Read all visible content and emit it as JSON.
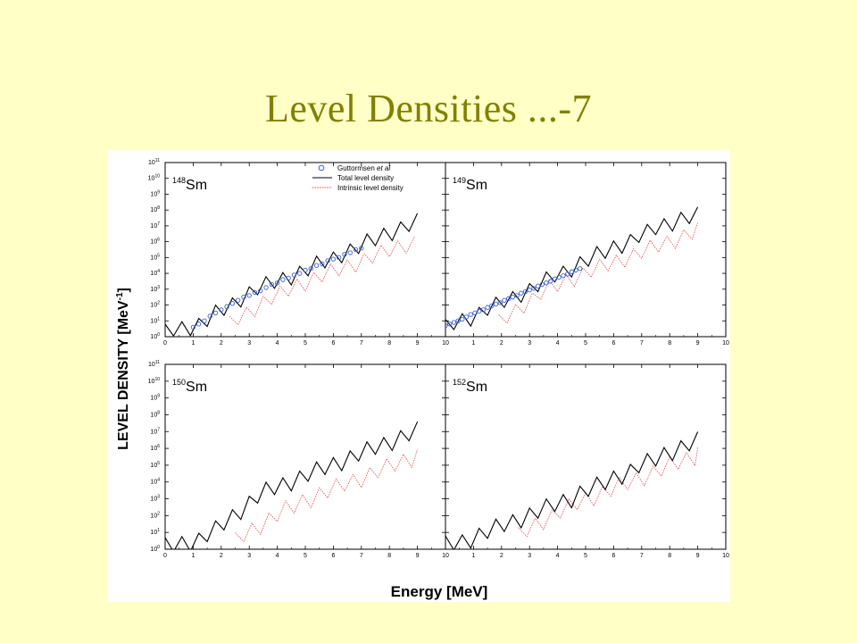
{
  "slide": {
    "title": "Level Densities ...-7"
  },
  "colors": {
    "background": "#ffffc6",
    "title": "#808000",
    "total": "#000000",
    "intrinsic": "#e84848",
    "experimental": "#3a5fd0"
  },
  "chart_data": {
    "type": "line",
    "xlabel": "Energy [MeV]",
    "ylabel": "LEVEL DENSITY [MeV",
    "ylabel_sup": "-1",
    "ylabel_close": "]",
    "xlim": [
      0,
      10
    ],
    "ylim_log10": [
      0,
      11
    ],
    "y_scale": "log",
    "x_ticks": [
      "0",
      "1",
      "2",
      "3",
      "4",
      "5",
      "6",
      "7",
      "8",
      "9",
      "10"
    ],
    "y_ticks": [
      {
        "base": "10",
        "exp": "0"
      },
      {
        "base": "10",
        "exp": "1"
      },
      {
        "base": "10",
        "exp": "2"
      },
      {
        "base": "10",
        "exp": "3"
      },
      {
        "base": "10",
        "exp": "4"
      },
      {
        "base": "10",
        "exp": "5"
      },
      {
        "base": "10",
        "exp": "6"
      },
      {
        "base": "10",
        "exp": "7"
      },
      {
        "base": "10",
        "exp": "8"
      },
      {
        "base": "10",
        "exp": "9"
      },
      {
        "base": "10",
        "exp": "10"
      },
      {
        "base": "10",
        "exp": "11"
      }
    ],
    "legend": {
      "placement": "top-right of first panel",
      "entries": [
        {
          "label": "Guttormsen ",
          "label_italic": "et al",
          "style": "circle",
          "color": "#3a5fd0"
        },
        {
          "label": "Total level density",
          "style": "line",
          "color": "#000000"
        },
        {
          "label": "Intrinsic level density",
          "style": "dotted",
          "color": "#e84848"
        }
      ]
    },
    "panels": [
      {
        "mass": "148",
        "element": "Sm",
        "total": {
          "x": [
            0,
            0.3,
            0.6,
            0.9,
            1.2,
            1.5,
            1.8,
            2.1,
            2.4,
            2.7,
            3.0,
            3.3,
            3.6,
            3.9,
            4.2,
            4.5,
            4.8,
            5.1,
            5.4,
            5.7,
            6.0,
            6.3,
            6.6,
            6.9,
            7.2,
            7.5,
            7.8,
            8.1,
            8.4,
            8.7,
            9.0
          ],
          "log10": [
            0.3,
            0.5,
            0.6,
            0.7,
            0.8,
            1.1,
            1.5,
            1.8,
            2.1,
            2.5,
            2.8,
            3.1,
            3.3,
            3.5,
            3.7,
            3.9,
            4.1,
            4.3,
            4.6,
            4.8,
            5.0,
            5.3,
            5.5,
            5.7,
            6.0,
            6.2,
            6.5,
            6.7,
            6.9,
            7.1,
            7.3
          ]
        },
        "intrinsic": {
          "x": [
            2.3,
            2.6,
            2.9,
            3.2,
            3.5,
            3.8,
            4.1,
            4.4,
            4.7,
            5.0,
            5.3,
            5.6,
            5.9,
            6.2,
            6.5,
            6.8,
            7.1,
            7.4,
            7.7,
            8.0,
            8.3,
            8.6,
            8.9
          ],
          "log10": [
            0.8,
            1.2,
            1.5,
            1.9,
            2.2,
            2.5,
            2.7,
            3.0,
            3.3,
            3.5,
            3.7,
            3.9,
            4.1,
            4.3,
            4.5,
            4.7,
            4.9,
            5.1,
            5.3,
            5.5,
            5.7,
            5.9,
            6.0
          ]
        },
        "experimental": {
          "x": [
            1.0,
            1.2,
            1.4,
            1.6,
            1.8,
            2.0,
            2.2,
            2.4,
            2.6,
            2.8,
            3.0,
            3.2,
            3.4,
            3.6,
            3.8,
            4.0,
            4.2,
            4.4,
            4.6,
            4.8,
            5.0,
            5.2,
            5.4,
            5.6,
            5.8,
            6.0,
            6.2,
            6.4,
            6.6,
            6.8,
            7.0
          ],
          "log10": [
            0.6,
            0.8,
            1.0,
            1.3,
            1.5,
            1.7,
            1.9,
            2.1,
            2.3,
            2.5,
            2.6,
            2.8,
            2.9,
            3.1,
            3.3,
            3.4,
            3.6,
            3.7,
            3.9,
            4.0,
            4.2,
            4.3,
            4.5,
            4.6,
            4.8,
            4.9,
            5.0,
            5.2,
            5.3,
            5.5,
            5.6
          ]
        }
      },
      {
        "mass": "149",
        "element": "Sm",
        "total": {
          "x": [
            0,
            0.3,
            0.6,
            0.9,
            1.2,
            1.5,
            1.8,
            2.1,
            2.4,
            2.7,
            3.0,
            3.3,
            3.6,
            3.9,
            4.2,
            4.5,
            4.8,
            5.1,
            5.4,
            5.7,
            6.0,
            6.3,
            6.6,
            6.9,
            7.2,
            7.5,
            7.8,
            8.1,
            8.4,
            8.7,
            9.0
          ],
          "log10": [
            0.6,
            0.9,
            1.1,
            1.3,
            1.5,
            1.8,
            2.0,
            2.3,
            2.5,
            2.8,
            3.0,
            3.3,
            3.6,
            3.9,
            4.1,
            4.4,
            4.7,
            4.9,
            5.2,
            5.4,
            5.7,
            5.9,
            6.1,
            6.4,
            6.6,
            6.9,
            7.1,
            7.3,
            7.5,
            7.6,
            7.7
          ]
        },
        "intrinsic": {
          "x": [
            1.9,
            2.2,
            2.5,
            2.8,
            3.1,
            3.4,
            3.7,
            4.0,
            4.3,
            4.6,
            4.9,
            5.2,
            5.5,
            5.8,
            6.1,
            6.4,
            6.7,
            7.0,
            7.3,
            7.6,
            7.9,
            8.2,
            8.5,
            8.8,
            9.0
          ],
          "log10": [
            0.9,
            1.3,
            1.7,
            2.1,
            2.4,
            2.8,
            3.1,
            3.3,
            3.6,
            3.8,
            4.0,
            4.2,
            4.4,
            4.6,
            4.8,
            5.0,
            5.2,
            5.4,
            5.6,
            5.8,
            6.0,
            6.2,
            6.4,
            6.6,
            6.7
          ]
        },
        "experimental": {
          "x": [
            0.0,
            0.15,
            0.3,
            0.45,
            0.6,
            0.75,
            0.9,
            1.05,
            1.2,
            1.35,
            1.5,
            1.65,
            1.8,
            1.95,
            2.1,
            2.25,
            2.4,
            2.55,
            2.7,
            2.85,
            3.0,
            3.15,
            3.3,
            3.45,
            3.6,
            3.75,
            3.9,
            4.05,
            4.2,
            4.35,
            4.5,
            4.65,
            4.8
          ],
          "log10": [
            0.7,
            0.8,
            0.9,
            1.0,
            1.1,
            1.25,
            1.4,
            1.5,
            1.6,
            1.7,
            1.85,
            1.95,
            2.05,
            2.15,
            2.3,
            2.4,
            2.5,
            2.6,
            2.75,
            2.85,
            2.95,
            3.05,
            3.2,
            3.3,
            3.4,
            3.5,
            3.65,
            3.75,
            3.85,
            3.95,
            4.1,
            4.2,
            4.3
          ]
        }
      },
      {
        "mass": "150",
        "element": "Sm",
        "total": {
          "x": [
            0,
            0.3,
            0.6,
            0.9,
            1.2,
            1.5,
            1.8,
            2.1,
            2.4,
            2.7,
            3.0,
            3.3,
            3.6,
            3.9,
            4.2,
            4.5,
            4.8,
            5.1,
            5.4,
            5.7,
            6.0,
            6.3,
            6.6,
            6.9,
            7.2,
            7.5,
            7.8,
            8.1,
            8.4,
            8.7,
            9.0
          ],
          "log10": [
            0.2,
            0.3,
            0.4,
            0.5,
            0.6,
            0.9,
            1.2,
            1.6,
            2.0,
            2.4,
            2.8,
            3.2,
            3.5,
            3.7,
            3.9,
            4.1,
            4.3,
            4.5,
            4.7,
            4.9,
            5.1,
            5.3,
            5.5,
            5.7,
            5.9,
            6.1,
            6.3,
            6.5,
            6.7,
            6.9,
            7.1
          ]
        },
        "intrinsic": {
          "x": [
            2.5,
            2.8,
            3.1,
            3.4,
            3.7,
            4.0,
            4.3,
            4.6,
            4.9,
            5.2,
            5.5,
            5.8,
            6.1,
            6.4,
            6.7,
            7.0,
            7.3,
            7.6,
            7.9,
            8.2,
            8.5,
            8.8,
            9.0
          ],
          "log10": [
            0.5,
            0.9,
            1.2,
            1.5,
            1.8,
            2.1,
            2.4,
            2.6,
            2.9,
            3.1,
            3.3,
            3.5,
            3.7,
            3.9,
            4.1,
            4.3,
            4.5,
            4.7,
            4.9,
            5.1,
            5.3,
            5.5,
            5.6
          ]
        }
      },
      {
        "mass": "152",
        "element": "Sm",
        "total": {
          "x": [
            0,
            0.3,
            0.6,
            0.9,
            1.2,
            1.5,
            1.8,
            2.1,
            2.4,
            2.7,
            3.0,
            3.3,
            3.6,
            3.9,
            4.2,
            4.5,
            4.8,
            5.1,
            5.4,
            5.7,
            6.0,
            6.3,
            6.6,
            6.9,
            7.2,
            7.5,
            7.8,
            8.1,
            8.4,
            8.7,
            9.0
          ],
          "log10": [
            0.3,
            0.4,
            0.5,
            0.7,
            0.9,
            1.1,
            1.3,
            1.5,
            1.7,
            1.9,
            2.1,
            2.3,
            2.5,
            2.7,
            2.9,
            3.1,
            3.4,
            3.6,
            3.8,
            4.0,
            4.3,
            4.5,
            4.7,
            5.0,
            5.2,
            5.4,
            5.7,
            5.9,
            6.1,
            6.3,
            6.5
          ]
        },
        "intrinsic": {
          "x": [
            2.6,
            2.9,
            3.2,
            3.5,
            3.8,
            4.1,
            4.4,
            4.7,
            5.0,
            5.3,
            5.6,
            5.9,
            6.2,
            6.5,
            6.8,
            7.1,
            7.4,
            7.7,
            8.0,
            8.3,
            8.6,
            8.9,
            9.0
          ],
          "log10": [
            0.8,
            1.2,
            1.5,
            1.8,
            2.0,
            2.3,
            2.5,
            2.8,
            3.0,
            3.2,
            3.4,
            3.6,
            3.8,
            4.0,
            4.2,
            4.4,
            4.6,
            4.8,
            5.0,
            5.2,
            5.4,
            5.6,
            5.7
          ]
        }
      }
    ]
  }
}
